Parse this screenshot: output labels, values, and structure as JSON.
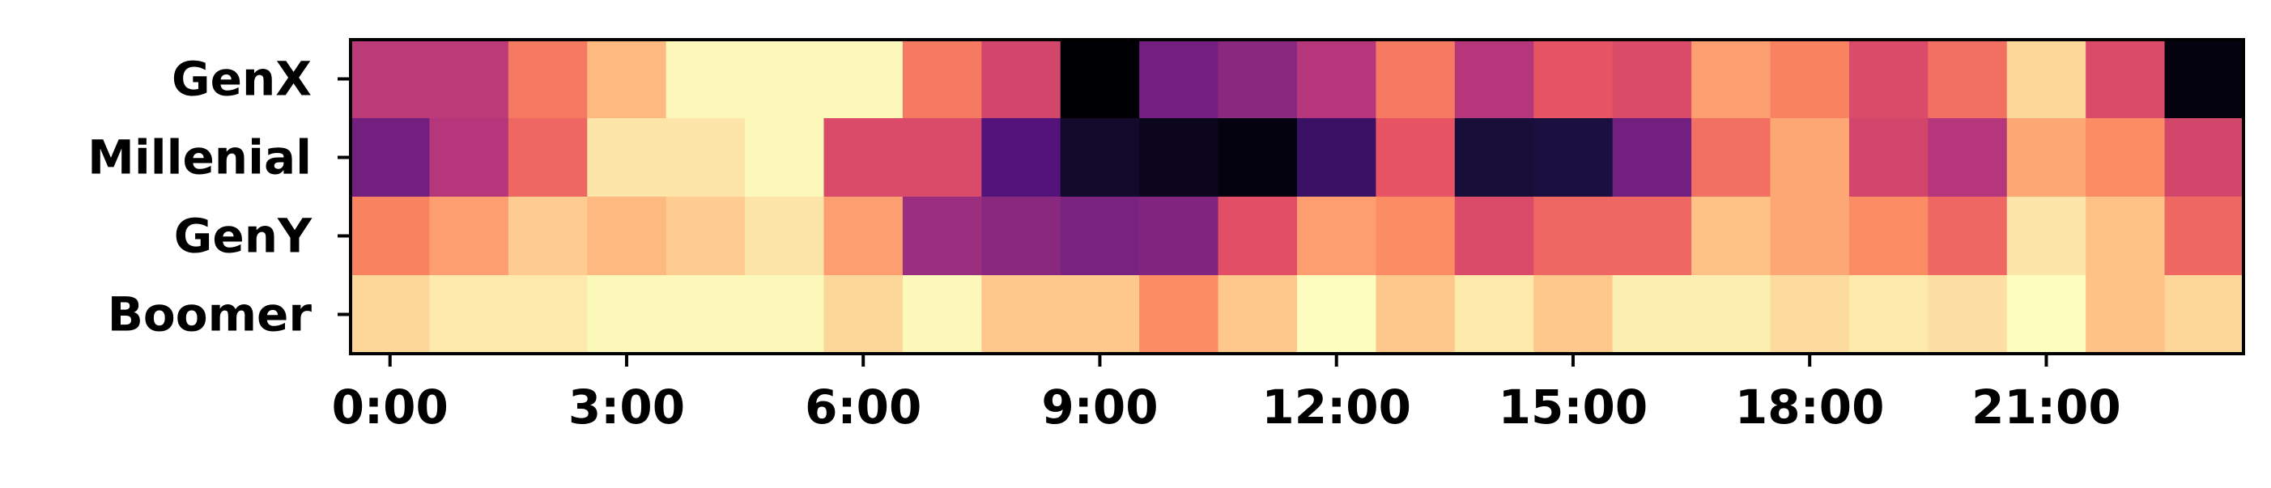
{
  "chart_data": {
    "type": "heatmap",
    "title": "",
    "xlabel": "",
    "ylabel": "",
    "colormap": "magma",
    "rows": [
      "GenX",
      "Millenial",
      "GenY",
      "Boomer"
    ],
    "columns": [
      "0:00",
      "1:00",
      "2:00",
      "3:00",
      "4:00",
      "5:00",
      "6:00",
      "7:00",
      "8:00",
      "9:00",
      "10:00",
      "11:00",
      "12:00",
      "13:00",
      "14:00",
      "15:00",
      "16:00",
      "17:00",
      "18:00",
      "19:00",
      "20:00",
      "21:00",
      "22:00",
      "23:00"
    ],
    "x_tick_labels": [
      "0:00",
      "3:00",
      "6:00",
      "9:00",
      "12:00",
      "15:00",
      "18:00",
      "21:00"
    ],
    "x_tick_hours": [
      0,
      3,
      6,
      9,
      12,
      15,
      18,
      21
    ],
    "values": [
      [
        0.52,
        0.52,
        0.72,
        0.86,
        0.99,
        0.99,
        0.99,
        0.72,
        0.58,
        0.0,
        0.34,
        0.4,
        0.5,
        0.72,
        0.5,
        0.64,
        0.6,
        0.8,
        0.74,
        0.6,
        0.7,
        0.92,
        0.6,
        0.02
      ],
      [
        0.34,
        0.5,
        0.68,
        0.95,
        0.95,
        0.99,
        0.6,
        0.6,
        0.26,
        0.08,
        0.05,
        0.02,
        0.2,
        0.64,
        0.11,
        0.12,
        0.34,
        0.7,
        0.82,
        0.58,
        0.5,
        0.82,
        0.76,
        0.58
      ],
      [
        0.74,
        0.8,
        0.9,
        0.86,
        0.9,
        0.95,
        0.8,
        0.44,
        0.4,
        0.36,
        0.38,
        0.62,
        0.8,
        0.76,
        0.6,
        0.68,
        0.68,
        0.88,
        0.82,
        0.76,
        0.68,
        0.95,
        0.88,
        0.68
      ],
      [
        0.92,
        0.96,
        0.96,
        0.99,
        0.99,
        0.99,
        0.92,
        0.99,
        0.89,
        0.89,
        0.76,
        0.89,
        1.0,
        0.89,
        0.96,
        0.89,
        0.97,
        0.97,
        0.93,
        0.96,
        0.94,
        1.0,
        0.88,
        0.92
      ]
    ],
    "grid": false,
    "legend": "none"
  }
}
